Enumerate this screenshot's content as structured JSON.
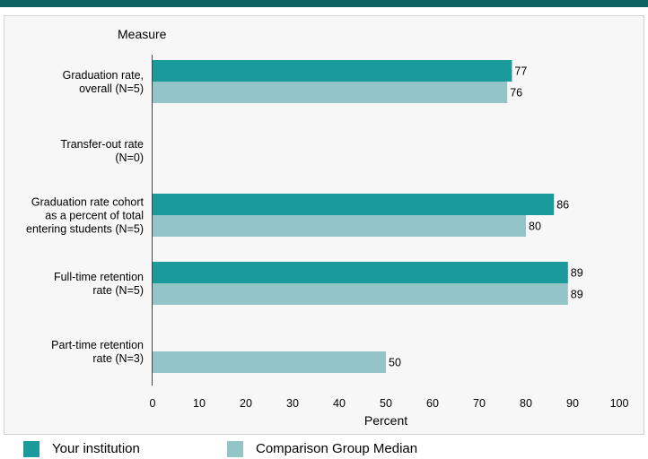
{
  "chart_data": {
    "type": "bar",
    "orientation": "horizontal",
    "category_axis_title": "Measure",
    "xlabel": "Percent",
    "xlim": [
      0,
      100
    ],
    "x_ticks": [
      0,
      10,
      20,
      30,
      40,
      50,
      60,
      70,
      80,
      90,
      100
    ],
    "categories": [
      [
        "Graduation rate,",
        "overall (N=5)"
      ],
      [
        "Transfer-out rate",
        "(N=0)"
      ],
      [
        "Graduation rate cohort",
        "as a percent of total",
        "entering students (N=5)"
      ],
      [
        "Full-time retention",
        "rate (N=5)"
      ],
      [
        "Part-time retention",
        "rate (N=3)"
      ]
    ],
    "series": [
      {
        "name": "Your institution",
        "color": "#1a9a9a",
        "values": [
          77,
          null,
          86,
          89,
          null
        ]
      },
      {
        "name": "Comparison Group Median",
        "color": "#92c4c8",
        "values": [
          76,
          null,
          80,
          89,
          50
        ]
      }
    ],
    "grid": false,
    "legend_position": "bottom-left"
  }
}
